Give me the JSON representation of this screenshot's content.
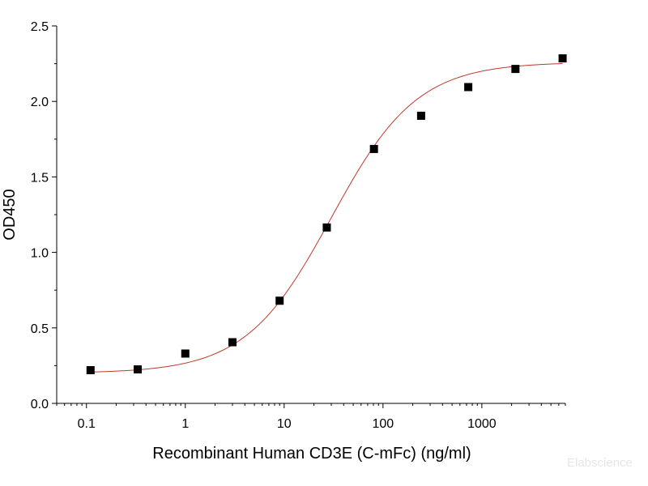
{
  "chart_data": {
    "type": "scatter",
    "xlabel": "Recombinant Human CD3E (C-mFc) (ng/ml)",
    "ylabel": "OD450",
    "x_scale": "log",
    "xlim": [
      0.05,
      7000
    ],
    "ylim": [
      0,
      2.5
    ],
    "x_ticks": [
      {
        "value": 0.1,
        "label": "0.1"
      },
      {
        "value": 1,
        "label": "1"
      },
      {
        "value": 10,
        "label": "10"
      },
      {
        "value": 100,
        "label": "100"
      },
      {
        "value": 1000,
        "label": "1000"
      }
    ],
    "y_ticks": [
      {
        "value": 0,
        "label": "0.0"
      },
      {
        "value": 0.5,
        "label": "0.5"
      },
      {
        "value": 1.0,
        "label": "1.0"
      },
      {
        "value": 1.5,
        "label": "1.5"
      },
      {
        "value": 2.0,
        "label": "2.0"
      },
      {
        "value": 2.5,
        "label": "2.5"
      }
    ],
    "points": [
      {
        "x": 0.11,
        "y": 0.22
      },
      {
        "x": 0.33,
        "y": 0.225
      },
      {
        "x": 1.0,
        "y": 0.33
      },
      {
        "x": 3.0,
        "y": 0.405
      },
      {
        "x": 9.0,
        "y": 0.68
      },
      {
        "x": 27,
        "y": 1.165
      },
      {
        "x": 81,
        "y": 1.685
      },
      {
        "x": 243,
        "y": 1.905
      },
      {
        "x": 729,
        "y": 2.095
      },
      {
        "x": 2187,
        "y": 2.215
      },
      {
        "x": 6561,
        "y": 2.285
      }
    ],
    "marker_color": "#000000",
    "fit_curve": {
      "bottom": 0.2,
      "top": 2.26,
      "ec50": 30,
      "hill": 1.0,
      "color": "#c0392b"
    },
    "grid": false,
    "watermark": "Elabscience"
  }
}
